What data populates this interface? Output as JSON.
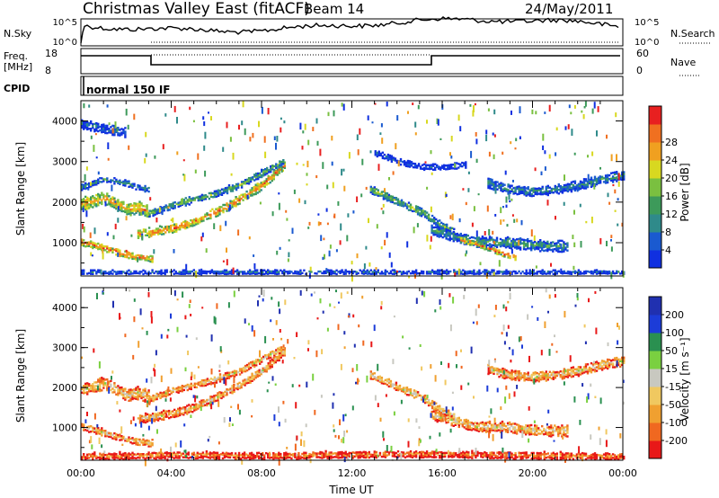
{
  "header": {
    "station": "Christmas Valley East (fitACF)",
    "beam": "Beam 14",
    "date": "24/May/2011"
  },
  "strip": {
    "nsky_label": "N.Sky",
    "nsky_ticks": [
      "10^5",
      "10^0"
    ],
    "nsearch_label": "N.Search",
    "nsearch_ticks": [
      "10^5",
      "10^0"
    ],
    "freq_label": "Freq.",
    "freq_unit": "[MHz]",
    "freq_ticks": [
      "18",
      "8"
    ],
    "nave_label": "Nave",
    "nave_ticks": [
      "60",
      "0"
    ],
    "cpid_label": "CPID",
    "cpid_value": "normal 150 IF"
  },
  "chart_data": [
    {
      "type": "heatmap",
      "name": "power",
      "xlabel": "",
      "ylabel": "Slant Range [km]",
      "xlim": [
        0,
        24
      ],
      "ylim": [
        180,
        4500
      ],
      "yticks": [
        "1000",
        "2000",
        "3000",
        "4000"
      ],
      "colorbar": {
        "label": "Power [dB]",
        "ticks": [
          "4",
          "8",
          "12",
          "16",
          "20",
          "24",
          "28"
        ],
        "colors": [
          "#1030e0",
          "#1a5ad0",
          "#2f8a8a",
          "#3d9a5a",
          "#7ac040",
          "#d8d820",
          "#f0a020",
          "#f07020",
          "#e82020"
        ]
      },
      "bands": [
        {
          "t": [
            0.0,
            0.5,
            1.0,
            1.5,
            2.0,
            2.5,
            3.0
          ],
          "r": [
            1950,
            2000,
            2100,
            1950,
            1800,
            1850,
            1750
          ],
          "w": 260,
          "c": 0.75
        },
        {
          "t": [
            0.0,
            0.5,
            1.0,
            1.5,
            2.0,
            2.5,
            3.0
          ],
          "r": [
            2350,
            2450,
            2550,
            2500,
            2450,
            2350,
            2300
          ],
          "w": 120,
          "c": 0.35
        },
        {
          "t": [
            0.0,
            0.6,
            1.2,
            1.8,
            2.4,
            3.2
          ],
          "r": [
            1000,
            920,
            820,
            720,
            640,
            580
          ],
          "w": 140,
          "c": 0.85
        },
        {
          "t": [
            2.5,
            3.2,
            4.0,
            5.0,
            6.0,
            7.0,
            8.0,
            9.0
          ],
          "r": [
            1200,
            1250,
            1330,
            1500,
            1750,
            2050,
            2400,
            2900
          ],
          "w": 180,
          "c": 0.8
        },
        {
          "t": [
            3.0,
            4.0,
            5.0,
            6.0,
            7.0,
            8.0,
            9.0
          ],
          "r": [
            1700,
            1900,
            2050,
            2200,
            2400,
            2700,
            3000
          ],
          "w": 140,
          "c": 0.45
        },
        {
          "t": [
            12.8,
            13.4,
            14.0,
            14.6,
            15.2,
            15.8,
            16.5
          ],
          "r": [
            2300,
            2150,
            2000,
            1850,
            1700,
            1450,
            1250
          ],
          "w": 160,
          "c": 0.5
        },
        {
          "t": [
            15.5,
            16.5,
            17.5,
            18.5,
            19.5,
            20.5,
            21.5
          ],
          "r": [
            1300,
            1150,
            1000,
            1000,
            950,
            900,
            900
          ],
          "w": 220,
          "c": 0.4
        },
        {
          "t": [
            16.8,
            17.4,
            18.0,
            18.6,
            19.2
          ],
          "r": [
            1050,
            950,
            850,
            720,
            620
          ],
          "w": 100,
          "c": 0.85
        },
        {
          "t": [
            18.0,
            19.0,
            20.0,
            21.0,
            22.0,
            23.0,
            24.0
          ],
          "r": [
            2450,
            2300,
            2250,
            2300,
            2400,
            2550,
            2650
          ],
          "w": 200,
          "c": 0.35
        },
        {
          "t": [
            13.0,
            14.0,
            15.0,
            16.0,
            17.0
          ],
          "r": [
            3200,
            3000,
            2850,
            2850,
            2900
          ],
          "w": 120,
          "c": 0.15
        },
        {
          "t": [
            0.0,
            1.0,
            2.0
          ],
          "r": [
            3900,
            3800,
            3700
          ],
          "w": 200,
          "c": 0.25
        },
        {
          "t": [
            0.0,
            4.0,
            8.0,
            11.0,
            14.0,
            18.0,
            21.0,
            24.0
          ],
          "r": [
            260,
            260,
            260,
            260,
            260,
            260,
            260,
            260
          ],
          "w": 80,
          "c": 0.2
        }
      ]
    },
    {
      "type": "heatmap",
      "name": "velocity",
      "xlabel": "Time UT",
      "ylabel": "Slant Range [km]",
      "xlim": [
        0,
        24
      ],
      "ylim": [
        180,
        4500
      ],
      "xticks": [
        "00:00",
        "04:00",
        "08:00",
        "12:00",
        "16:00",
        "20:00",
        "00:00"
      ],
      "yticks": [
        "1000",
        "2000",
        "3000",
        "4000"
      ],
      "colorbar": {
        "label": "Velocity [m s⁻¹]",
        "ticks": [
          "-200",
          "-100",
          "-50",
          "-15",
          "15",
          "50",
          "100",
          "200"
        ],
        "colors": [
          "#e81818",
          "#f06820",
          "#f0a030",
          "#f0c860",
          "#c8c8c0",
          "#7ad040",
          "#2a9050",
          "#1c3cd8",
          "#2030b0"
        ]
      },
      "bands": [
        {
          "t": [
            0.0,
            0.5,
            1.0,
            1.5,
            2.0,
            2.5,
            3.0
          ],
          "r": [
            1950,
            2000,
            2100,
            1950,
            1800,
            1850,
            1750
          ],
          "w": 260,
          "c": 0.45
        },
        {
          "t": [
            0.0,
            0.6,
            1.2,
            1.8,
            2.4,
            3.2
          ],
          "r": [
            1000,
            920,
            820,
            720,
            640,
            580
          ],
          "w": 140,
          "c": 0.45
        },
        {
          "t": [
            2.5,
            3.2,
            4.0,
            5.0,
            6.0,
            7.0,
            8.0,
            9.0
          ],
          "r": [
            1200,
            1250,
            1330,
            1500,
            1750,
            2050,
            2400,
            2900
          ],
          "w": 180,
          "c": 0.45
        },
        {
          "t": [
            3.0,
            4.0,
            5.0,
            6.0,
            7.0,
            8.0,
            9.0
          ],
          "r": [
            1700,
            1900,
            2050,
            2200,
            2400,
            2700,
            3000
          ],
          "w": 140,
          "c": 0.45
        },
        {
          "t": [
            12.8,
            13.4,
            14.0,
            14.6,
            15.2,
            15.8,
            16.5
          ],
          "r": [
            2300,
            2150,
            2000,
            1850,
            1700,
            1450,
            1250
          ],
          "w": 160,
          "c": 0.5
        },
        {
          "t": [
            15.5,
            16.5,
            17.5,
            18.5,
            19.5,
            20.5,
            21.5
          ],
          "r": [
            1300,
            1150,
            1000,
            1000,
            950,
            900,
            900
          ],
          "w": 220,
          "c": 0.45
        },
        {
          "t": [
            18.0,
            19.0,
            20.0,
            21.0,
            22.0,
            23.0,
            24.0
          ],
          "r": [
            2450,
            2300,
            2250,
            2300,
            2400,
            2550,
            2650
          ],
          "w": 200,
          "c": 0.45
        },
        {
          "t": [
            0.0,
            4.0,
            8.0,
            11.0,
            14.0,
            18.0,
            21.0,
            24.0
          ],
          "r": [
            260,
            300,
            280,
            300,
            320,
            300,
            280,
            260
          ],
          "w": 140,
          "c": 0.28
        }
      ]
    }
  ]
}
